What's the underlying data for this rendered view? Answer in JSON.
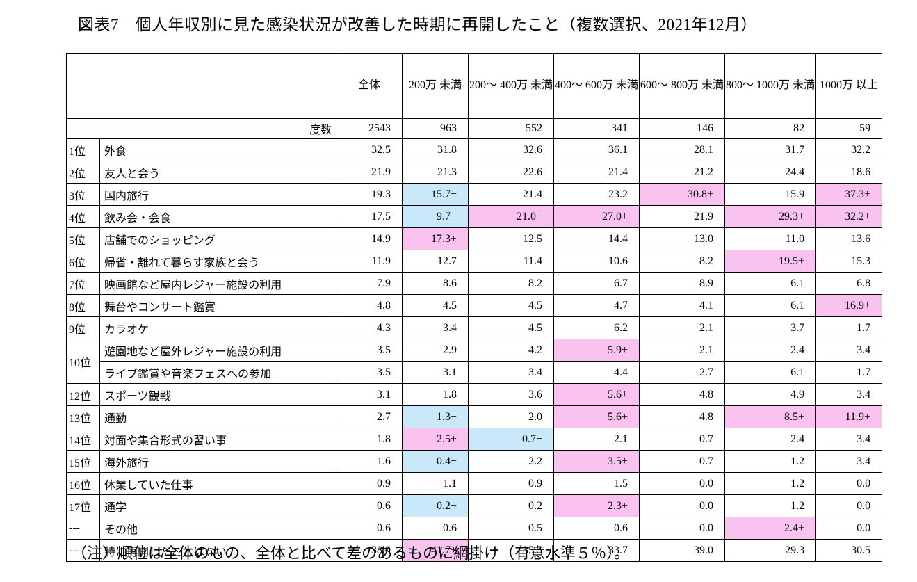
{
  "page": {
    "title": "図表7　個人年収別に見た感染状況が改善した時期に再開したこと（複数選択、2021年12月）",
    "note": "（注）順位は全体のもの、全体と比べて差のあるものに網掛け（有意水準５％）。"
  },
  "colors": {
    "plus_highlight": "#f9c2ef",
    "minus_highlight": "#c9e8f9",
    "border": "#000000"
  },
  "table": {
    "column_headers": [
      "全体",
      "200万\n未満",
      "200～\n400万\n未満",
      "400～\n600万\n未満",
      "600～\n800万\n未満",
      "800～\n1000万\n未満",
      "1000万\n以上"
    ],
    "frequency_label": "度数",
    "frequency_values": [
      "2543",
      "963",
      "552",
      "341",
      "146",
      "82",
      "59"
    ],
    "rows": [
      {
        "rank": "1位",
        "item": "外食",
        "cells": [
          {
            "v": "32.5"
          },
          {
            "v": "31.8"
          },
          {
            "v": "32.6"
          },
          {
            "v": "36.1"
          },
          {
            "v": "28.1"
          },
          {
            "v": "31.7"
          },
          {
            "v": "32.2"
          }
        ]
      },
      {
        "rank": "2位",
        "item": "友人と会う",
        "cells": [
          {
            "v": "21.9"
          },
          {
            "v": "21.3"
          },
          {
            "v": "22.6"
          },
          {
            "v": "21.4"
          },
          {
            "v": "21.2"
          },
          {
            "v": "24.4"
          },
          {
            "v": "18.6"
          }
        ]
      },
      {
        "rank": "3位",
        "item": "国内旅行",
        "cells": [
          {
            "v": "19.3"
          },
          {
            "v": "15.7",
            "s": "−",
            "h": "b"
          },
          {
            "v": "21.4"
          },
          {
            "v": "23.2"
          },
          {
            "v": "30.8",
            "s": "+",
            "h": "p"
          },
          {
            "v": "15.9"
          },
          {
            "v": "37.3",
            "s": "+",
            "h": "p"
          }
        ]
      },
      {
        "rank": "4位",
        "item": "飲み会・会食",
        "cells": [
          {
            "v": "17.5"
          },
          {
            "v": "9.7",
            "s": "−",
            "h": "b"
          },
          {
            "v": "21.0",
            "s": "+",
            "h": "p"
          },
          {
            "v": "27.0",
            "s": "+",
            "h": "p"
          },
          {
            "v": "21.9"
          },
          {
            "v": "29.3",
            "s": "+",
            "h": "p"
          },
          {
            "v": "32.2",
            "s": "+",
            "h": "p"
          }
        ]
      },
      {
        "rank": "5位",
        "item": "店舗でのショッピング",
        "cells": [
          {
            "v": "14.9"
          },
          {
            "v": "17.3",
            "s": "+",
            "h": "p"
          },
          {
            "v": "12.5"
          },
          {
            "v": "14.4"
          },
          {
            "v": "13.0"
          },
          {
            "v": "11.0"
          },
          {
            "v": "13.6"
          }
        ]
      },
      {
        "rank": "6位",
        "item": "帰省・離れて暮らす家族と会う",
        "cells": [
          {
            "v": "11.9"
          },
          {
            "v": "12.7"
          },
          {
            "v": "11.4"
          },
          {
            "v": "10.6"
          },
          {
            "v": "8.2"
          },
          {
            "v": "19.5",
            "s": "+",
            "h": "p"
          },
          {
            "v": "15.3"
          }
        ]
      },
      {
        "rank": "7位",
        "item": "映画館など屋内レジャー施設の利用",
        "cells": [
          {
            "v": "7.9"
          },
          {
            "v": "8.6"
          },
          {
            "v": "8.2"
          },
          {
            "v": "6.7"
          },
          {
            "v": "8.9"
          },
          {
            "v": "6.1"
          },
          {
            "v": "6.8"
          }
        ]
      },
      {
        "rank": "8位",
        "item": "舞台やコンサート鑑賞",
        "cells": [
          {
            "v": "4.8"
          },
          {
            "v": "4.5"
          },
          {
            "v": "4.5"
          },
          {
            "v": "4.7"
          },
          {
            "v": "4.1"
          },
          {
            "v": "6.1"
          },
          {
            "v": "16.9",
            "s": "+",
            "h": "p"
          }
        ]
      },
      {
        "rank": "9位",
        "item": "カラオケ",
        "cells": [
          {
            "v": "4.3"
          },
          {
            "v": "3.4"
          },
          {
            "v": "4.5"
          },
          {
            "v": "6.2"
          },
          {
            "v": "2.1"
          },
          {
            "v": "3.7"
          },
          {
            "v": "1.7"
          }
        ]
      },
      {
        "rank": "10位",
        "rowspan": 2,
        "item": "遊園地など屋外レジャー施設の利用",
        "cells": [
          {
            "v": "3.5"
          },
          {
            "v": "2.9"
          },
          {
            "v": "4.2"
          },
          {
            "v": "5.9",
            "s": "+",
            "h": "p"
          },
          {
            "v": "2.1"
          },
          {
            "v": "2.4"
          },
          {
            "v": "3.4"
          }
        ]
      },
      {
        "rank": null,
        "item": "ライブ鑑賞や音楽フェスへの参加",
        "cells": [
          {
            "v": "3.5"
          },
          {
            "v": "3.1"
          },
          {
            "v": "3.4"
          },
          {
            "v": "4.4"
          },
          {
            "v": "2.7"
          },
          {
            "v": "6.1"
          },
          {
            "v": "1.7"
          }
        ]
      },
      {
        "rank": "12位",
        "item": "スポーツ観戦",
        "cells": [
          {
            "v": "3.1"
          },
          {
            "v": "1.8"
          },
          {
            "v": "3.6"
          },
          {
            "v": "5.6",
            "s": "+",
            "h": "p"
          },
          {
            "v": "4.8"
          },
          {
            "v": "4.9"
          },
          {
            "v": "3.4"
          }
        ]
      },
      {
        "rank": "13位",
        "item": "通勤",
        "cells": [
          {
            "v": "2.7"
          },
          {
            "v": "1.3",
            "s": "−",
            "h": "b"
          },
          {
            "v": "2.0"
          },
          {
            "v": "5.6",
            "s": "+",
            "h": "p"
          },
          {
            "v": "4.8"
          },
          {
            "v": "8.5",
            "s": "+",
            "h": "p"
          },
          {
            "v": "11.9",
            "s": "+",
            "h": "p"
          }
        ]
      },
      {
        "rank": "14位",
        "item": "対面や集合形式の習い事",
        "cells": [
          {
            "v": "1.8"
          },
          {
            "v": "2.5",
            "s": "+",
            "h": "p"
          },
          {
            "v": "0.7",
            "s": "−",
            "h": "b"
          },
          {
            "v": "2.1"
          },
          {
            "v": "0.7"
          },
          {
            "v": "2.4"
          },
          {
            "v": "3.4"
          }
        ]
      },
      {
        "rank": "15位",
        "item": "海外旅行",
        "cells": [
          {
            "v": "1.6"
          },
          {
            "v": "0.4",
            "s": "−",
            "h": "b"
          },
          {
            "v": "2.2"
          },
          {
            "v": "3.5",
            "s": "+",
            "h": "p"
          },
          {
            "v": "0.7"
          },
          {
            "v": "1.2"
          },
          {
            "v": "3.4"
          }
        ]
      },
      {
        "rank": "16位",
        "item": "休業していた仕事",
        "cells": [
          {
            "v": "0.9"
          },
          {
            "v": "1.1"
          },
          {
            "v": "0.9"
          },
          {
            "v": "1.5"
          },
          {
            "v": "0.0"
          },
          {
            "v": "1.2"
          },
          {
            "v": "0.0"
          }
        ]
      },
      {
        "rank": "17位",
        "item": "通学",
        "cells": [
          {
            "v": "0.6"
          },
          {
            "v": "0.2",
            "s": "−",
            "h": "b"
          },
          {
            "v": "0.2"
          },
          {
            "v": "2.3",
            "s": "+",
            "h": "p"
          },
          {
            "v": "0.0"
          },
          {
            "v": "1.2"
          },
          {
            "v": "0.0"
          }
        ]
      },
      {
        "rank": "---",
        "item": "その他",
        "cells": [
          {
            "v": "0.6"
          },
          {
            "v": "0.6"
          },
          {
            "v": "0.5"
          },
          {
            "v": "0.6"
          },
          {
            "v": "0.0"
          },
          {
            "v": "2.4",
            "s": "+",
            "h": "p"
          },
          {
            "v": "0.0"
          }
        ]
      },
      {
        "rank": "---",
        "item": "特に再開したことはない",
        "cells": [
          {
            "v": "38.0"
          },
          {
            "v": "41.7",
            "s": "+",
            "h": "p"
          },
          {
            "v": "35.5"
          },
          {
            "v": "33.7"
          },
          {
            "v": "39.0"
          },
          {
            "v": "29.3"
          },
          {
            "v": "30.5"
          }
        ]
      }
    ]
  }
}
